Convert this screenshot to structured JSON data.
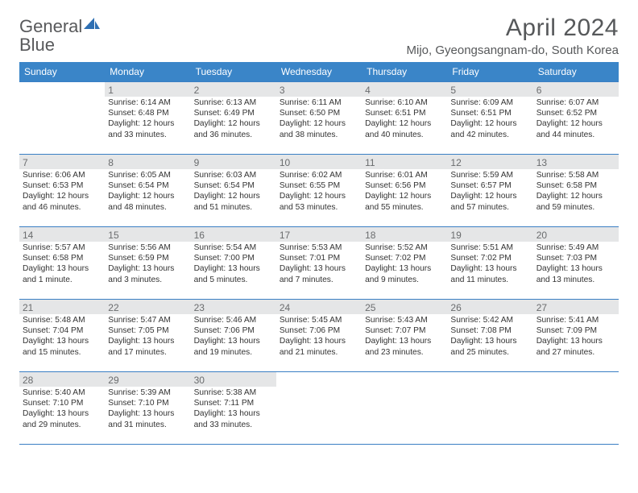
{
  "logo": {
    "word1": "General",
    "word2": "Blue"
  },
  "title": "April 2024",
  "location": "Mijo, Gyeongsangnam-do, South Korea",
  "colors": {
    "header_bg": "#3a85c8",
    "header_text": "#ffffff",
    "border": "#3a7fc4",
    "daynum": "#6a6c6e",
    "body_text": "#3a3a3a",
    "title_text": "#56585a",
    "shade": "#e5e6e7"
  },
  "daysOfWeek": [
    "Sunday",
    "Monday",
    "Tuesday",
    "Wednesday",
    "Thursday",
    "Friday",
    "Saturday"
  ],
  "weeks": [
    [
      {
        "n": "",
        "sr": "",
        "ss": "",
        "dl": ""
      },
      {
        "n": "1",
        "sr": "Sunrise: 6:14 AM",
        "ss": "Sunset: 6:48 PM",
        "dl": "Daylight: 12 hours and 33 minutes."
      },
      {
        "n": "2",
        "sr": "Sunrise: 6:13 AM",
        "ss": "Sunset: 6:49 PM",
        "dl": "Daylight: 12 hours and 36 minutes."
      },
      {
        "n": "3",
        "sr": "Sunrise: 6:11 AM",
        "ss": "Sunset: 6:50 PM",
        "dl": "Daylight: 12 hours and 38 minutes."
      },
      {
        "n": "4",
        "sr": "Sunrise: 6:10 AM",
        "ss": "Sunset: 6:51 PM",
        "dl": "Daylight: 12 hours and 40 minutes."
      },
      {
        "n": "5",
        "sr": "Sunrise: 6:09 AM",
        "ss": "Sunset: 6:51 PM",
        "dl": "Daylight: 12 hours and 42 minutes."
      },
      {
        "n": "6",
        "sr": "Sunrise: 6:07 AM",
        "ss": "Sunset: 6:52 PM",
        "dl": "Daylight: 12 hours and 44 minutes."
      }
    ],
    [
      {
        "n": "7",
        "sr": "Sunrise: 6:06 AM",
        "ss": "Sunset: 6:53 PM",
        "dl": "Daylight: 12 hours and 46 minutes."
      },
      {
        "n": "8",
        "sr": "Sunrise: 6:05 AM",
        "ss": "Sunset: 6:54 PM",
        "dl": "Daylight: 12 hours and 48 minutes."
      },
      {
        "n": "9",
        "sr": "Sunrise: 6:03 AM",
        "ss": "Sunset: 6:54 PM",
        "dl": "Daylight: 12 hours and 51 minutes."
      },
      {
        "n": "10",
        "sr": "Sunrise: 6:02 AM",
        "ss": "Sunset: 6:55 PM",
        "dl": "Daylight: 12 hours and 53 minutes."
      },
      {
        "n": "11",
        "sr": "Sunrise: 6:01 AM",
        "ss": "Sunset: 6:56 PM",
        "dl": "Daylight: 12 hours and 55 minutes."
      },
      {
        "n": "12",
        "sr": "Sunrise: 5:59 AM",
        "ss": "Sunset: 6:57 PM",
        "dl": "Daylight: 12 hours and 57 minutes."
      },
      {
        "n": "13",
        "sr": "Sunrise: 5:58 AM",
        "ss": "Sunset: 6:58 PM",
        "dl": "Daylight: 12 hours and 59 minutes."
      }
    ],
    [
      {
        "n": "14",
        "sr": "Sunrise: 5:57 AM",
        "ss": "Sunset: 6:58 PM",
        "dl": "Daylight: 13 hours and 1 minute."
      },
      {
        "n": "15",
        "sr": "Sunrise: 5:56 AM",
        "ss": "Sunset: 6:59 PM",
        "dl": "Daylight: 13 hours and 3 minutes."
      },
      {
        "n": "16",
        "sr": "Sunrise: 5:54 AM",
        "ss": "Sunset: 7:00 PM",
        "dl": "Daylight: 13 hours and 5 minutes."
      },
      {
        "n": "17",
        "sr": "Sunrise: 5:53 AM",
        "ss": "Sunset: 7:01 PM",
        "dl": "Daylight: 13 hours and 7 minutes."
      },
      {
        "n": "18",
        "sr": "Sunrise: 5:52 AM",
        "ss": "Sunset: 7:02 PM",
        "dl": "Daylight: 13 hours and 9 minutes."
      },
      {
        "n": "19",
        "sr": "Sunrise: 5:51 AM",
        "ss": "Sunset: 7:02 PM",
        "dl": "Daylight: 13 hours and 11 minutes."
      },
      {
        "n": "20",
        "sr": "Sunrise: 5:49 AM",
        "ss": "Sunset: 7:03 PM",
        "dl": "Daylight: 13 hours and 13 minutes."
      }
    ],
    [
      {
        "n": "21",
        "sr": "Sunrise: 5:48 AM",
        "ss": "Sunset: 7:04 PM",
        "dl": "Daylight: 13 hours and 15 minutes."
      },
      {
        "n": "22",
        "sr": "Sunrise: 5:47 AM",
        "ss": "Sunset: 7:05 PM",
        "dl": "Daylight: 13 hours and 17 minutes."
      },
      {
        "n": "23",
        "sr": "Sunrise: 5:46 AM",
        "ss": "Sunset: 7:06 PM",
        "dl": "Daylight: 13 hours and 19 minutes."
      },
      {
        "n": "24",
        "sr": "Sunrise: 5:45 AM",
        "ss": "Sunset: 7:06 PM",
        "dl": "Daylight: 13 hours and 21 minutes."
      },
      {
        "n": "25",
        "sr": "Sunrise: 5:43 AM",
        "ss": "Sunset: 7:07 PM",
        "dl": "Daylight: 13 hours and 23 minutes."
      },
      {
        "n": "26",
        "sr": "Sunrise: 5:42 AM",
        "ss": "Sunset: 7:08 PM",
        "dl": "Daylight: 13 hours and 25 minutes."
      },
      {
        "n": "27",
        "sr": "Sunrise: 5:41 AM",
        "ss": "Sunset: 7:09 PM",
        "dl": "Daylight: 13 hours and 27 minutes."
      }
    ],
    [
      {
        "n": "28",
        "sr": "Sunrise: 5:40 AM",
        "ss": "Sunset: 7:10 PM",
        "dl": "Daylight: 13 hours and 29 minutes."
      },
      {
        "n": "29",
        "sr": "Sunrise: 5:39 AM",
        "ss": "Sunset: 7:10 PM",
        "dl": "Daylight: 13 hours and 31 minutes."
      },
      {
        "n": "30",
        "sr": "Sunrise: 5:38 AM",
        "ss": "Sunset: 7:11 PM",
        "dl": "Daylight: 13 hours and 33 minutes."
      },
      {
        "n": "",
        "sr": "",
        "ss": "",
        "dl": ""
      },
      {
        "n": "",
        "sr": "",
        "ss": "",
        "dl": ""
      },
      {
        "n": "",
        "sr": "",
        "ss": "",
        "dl": ""
      },
      {
        "n": "",
        "sr": "",
        "ss": "",
        "dl": ""
      }
    ]
  ]
}
